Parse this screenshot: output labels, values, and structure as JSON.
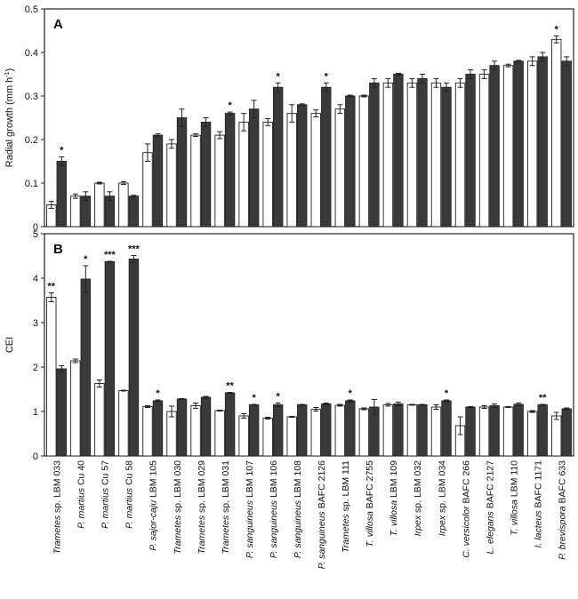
{
  "strains": [
    {
      "italic": "Trametes",
      "rest": " sp. LBM 033"
    },
    {
      "italic": "P. martius",
      "rest": " Cu 40"
    },
    {
      "italic": "P. martius",
      "rest": " Cu 57"
    },
    {
      "italic": "P. martius",
      "rest": " Cu 58"
    },
    {
      "italic": "P. sajor-caju",
      "rest": " LBM 105"
    },
    {
      "italic": "Trametes",
      "rest": " sp. LBM 030"
    },
    {
      "italic": "Trametes",
      "rest": " sp. LBM 029"
    },
    {
      "italic": "Trametes",
      "rest": " sp. LBM 031"
    },
    {
      "italic": "P. sanguineus",
      "rest": " LBM 107"
    },
    {
      "italic": "P. sanguineus",
      "rest": " LBM 106"
    },
    {
      "italic": "P. sanguineus",
      "rest": " LBM 108"
    },
    {
      "italic": "P. sanguineus",
      "rest": " BAFC 2126"
    },
    {
      "italic": "Trametes",
      "rest": " sp. LBM 111"
    },
    {
      "italic": "T. villosa",
      "rest": " BAFC 2755"
    },
    {
      "italic": "T. villosa",
      "rest": " LBM 109"
    },
    {
      "italic": "Irpex",
      "rest": " sp. LBM 032"
    },
    {
      "italic": "Irpex",
      "rest": " sp. LBM 034"
    },
    {
      "italic": "C. versicolor",
      "rest": " BAFC 266"
    },
    {
      "italic": "L. elegans",
      "rest": " BAFC 2127"
    },
    {
      "italic": "T. villosa",
      "rest": " LBM 110"
    },
    {
      "italic": "I. lacteus",
      "rest": " BAFC 1171"
    },
    {
      "italic": "P. brevispora",
      "rest": " BAFC 633"
    }
  ],
  "colors": {
    "open_bar": "#ffffff",
    "dark_bar": "#3a3a3a",
    "axis": "#222222"
  },
  "chart_data": [
    {
      "type": "bar",
      "panel_label": "A",
      "ylabel_main": "Radial growth (mm h",
      "ylabel_sup": "-1",
      "ylabel_end": ")",
      "ylim": [
        0,
        0.5
      ],
      "yticks": [
        "0",
        "0.1",
        "0.2",
        "0.3",
        "0.4",
        "0.5"
      ],
      "grid": false,
      "series": [
        {
          "fill": "open",
          "values": [
            0.05,
            0.07,
            0.1,
            0.1,
            0.17,
            0.19,
            0.21,
            0.21,
            0.24,
            0.24,
            0.26,
            0.26,
            0.27,
            0.3,
            0.33,
            0.33,
            0.33,
            0.33,
            0.35,
            0.37,
            0.38,
            0.43
          ],
          "errors": [
            0.008,
            0.005,
            0.002,
            0.003,
            0.02,
            0.01,
            0.003,
            0.008,
            0.02,
            0.008,
            0.02,
            0.008,
            0.01,
            0.002,
            0.01,
            0.01,
            0.01,
            0.01,
            0.01,
            0.003,
            0.01,
            0.008
          ]
        },
        {
          "fill": "dark",
          "values": [
            0.15,
            0.07,
            0.07,
            0.07,
            0.21,
            0.25,
            0.24,
            0.26,
            0.27,
            0.32,
            0.28,
            0.32,
            0.3,
            0.33,
            0.35,
            0.34,
            0.32,
            0.35,
            0.37,
            0.38,
            0.39,
            0.38
          ],
          "errors": [
            0.01,
            0.01,
            0.01,
            0.002,
            0.003,
            0.02,
            0.01,
            0.003,
            0.02,
            0.01,
            0.002,
            0.01,
            0.002,
            0.01,
            0.002,
            0.01,
            0.01,
            0.01,
            0.01,
            0.002,
            0.01,
            0.01
          ]
        }
      ],
      "annotations": [
        {
          "index": 0,
          "series": 1,
          "text": "*"
        },
        {
          "index": 7,
          "series": 1,
          "text": "*"
        },
        {
          "index": 9,
          "series": 1,
          "text": "*"
        },
        {
          "index": 11,
          "series": 1,
          "text": "*"
        },
        {
          "index": 21,
          "series": 0,
          "text": "*"
        }
      ]
    },
    {
      "type": "bar",
      "panel_label": "B",
      "ylabel_main": "CEI",
      "ylabel_sup": "",
      "ylabel_end": "",
      "ylim": [
        0,
        5
      ],
      "yticks": [
        "0",
        "1",
        "2",
        "3",
        "4",
        "5"
      ],
      "grid": false,
      "series": [
        {
          "fill": "open",
          "values": [
            3.57,
            2.14,
            1.63,
            1.47,
            1.11,
            1.0,
            1.13,
            1.02,
            0.9,
            0.85,
            0.88,
            1.05,
            1.14,
            1.06,
            1.15,
            1.15,
            1.1,
            0.68,
            1.1,
            1.1,
            1.0,
            0.9
          ],
          "errors": [
            0.1,
            0.04,
            0.08,
            0.01,
            0.02,
            0.12,
            0.06,
            0.01,
            0.05,
            0.02,
            0.01,
            0.04,
            0.02,
            0.02,
            0.03,
            0.01,
            0.05,
            0.2,
            0.03,
            0.01,
            0.02,
            0.08
          ]
        },
        {
          "fill": "dark",
          "values": [
            1.96,
            3.98,
            4.37,
            4.43,
            1.24,
            1.28,
            1.32,
            1.42,
            1.15,
            1.15,
            1.15,
            1.17,
            1.24,
            1.1,
            1.17,
            1.15,
            1.24,
            1.1,
            1.13,
            1.16,
            1.15,
            1.06
          ],
          "errors": [
            0.07,
            0.3,
            0.01,
            0.08,
            0.02,
            0.01,
            0.02,
            0.01,
            0.01,
            0.04,
            0.01,
            0.02,
            0.02,
            0.17,
            0.04,
            0.01,
            0.02,
            0.01,
            0.04,
            0.03,
            0.01,
            0.02
          ]
        }
      ],
      "annotations": [
        {
          "index": 0,
          "series": 0,
          "text": "**"
        },
        {
          "index": 1,
          "series": 1,
          "text": "*"
        },
        {
          "index": 2,
          "series": 1,
          "text": "***"
        },
        {
          "index": 3,
          "series": 1,
          "text": "***"
        },
        {
          "index": 4,
          "series": 1,
          "text": "*"
        },
        {
          "index": 7,
          "series": 1,
          "text": "**"
        },
        {
          "index": 8,
          "series": 1,
          "text": "*"
        },
        {
          "index": 9,
          "series": 1,
          "text": "*"
        },
        {
          "index": 12,
          "series": 1,
          "text": "*"
        },
        {
          "index": 16,
          "series": 1,
          "text": "*"
        },
        {
          "index": 20,
          "series": 1,
          "text": "**"
        }
      ]
    }
  ]
}
